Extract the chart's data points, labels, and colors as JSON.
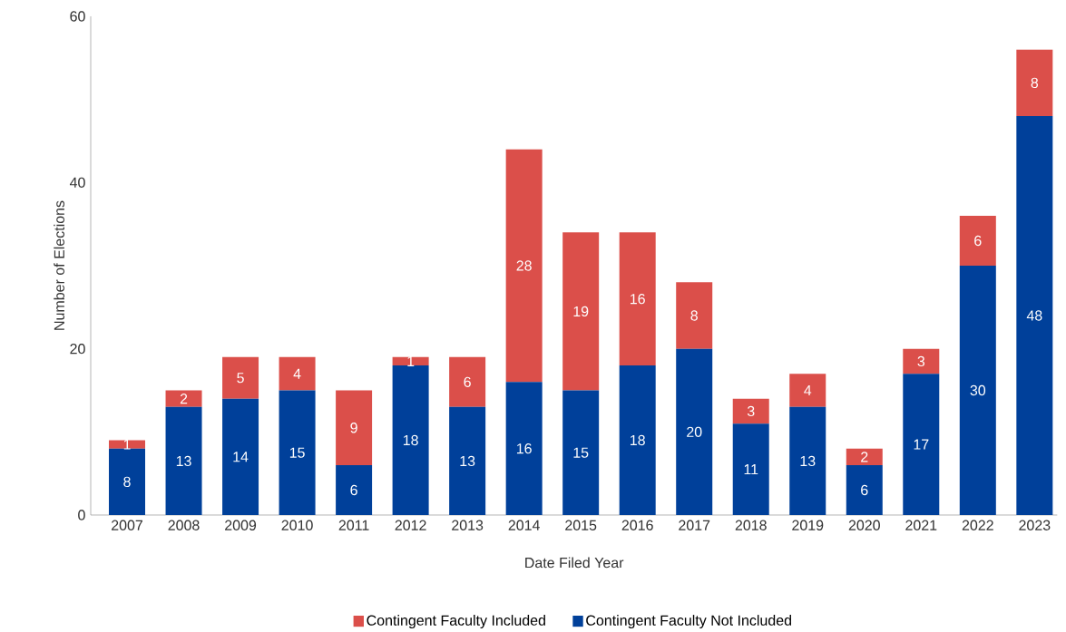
{
  "chart_data": {
    "type": "bar",
    "stacked": true,
    "data_labels": true,
    "legend": "bottom",
    "xlabel": "Date Filed Year",
    "ylabel": "Number of Elections",
    "categories": [
      "2007",
      "2008",
      "2009",
      "2010",
      "2011",
      "2012",
      "2013",
      "2014",
      "2015",
      "2016",
      "2017",
      "2018",
      "2019",
      "2020",
      "2021",
      "2022",
      "2023"
    ],
    "ylim": [
      0,
      60
    ],
    "yticks": [
      0,
      20,
      40,
      60
    ],
    "series": [
      {
        "name": "Contingent Faculty Not Included",
        "color": "#00409a",
        "values": [
          8,
          13,
          14,
          15,
          6,
          18,
          13,
          16,
          15,
          18,
          20,
          11,
          13,
          6,
          17,
          30,
          48
        ]
      },
      {
        "name": "Contingent Faculty Included",
        "color": "#db4f4a",
        "values": [
          1,
          2,
          5,
          4,
          9,
          1,
          6,
          28,
          19,
          16,
          8,
          3,
          4,
          2,
          3,
          6,
          8
        ]
      }
    ]
  }
}
